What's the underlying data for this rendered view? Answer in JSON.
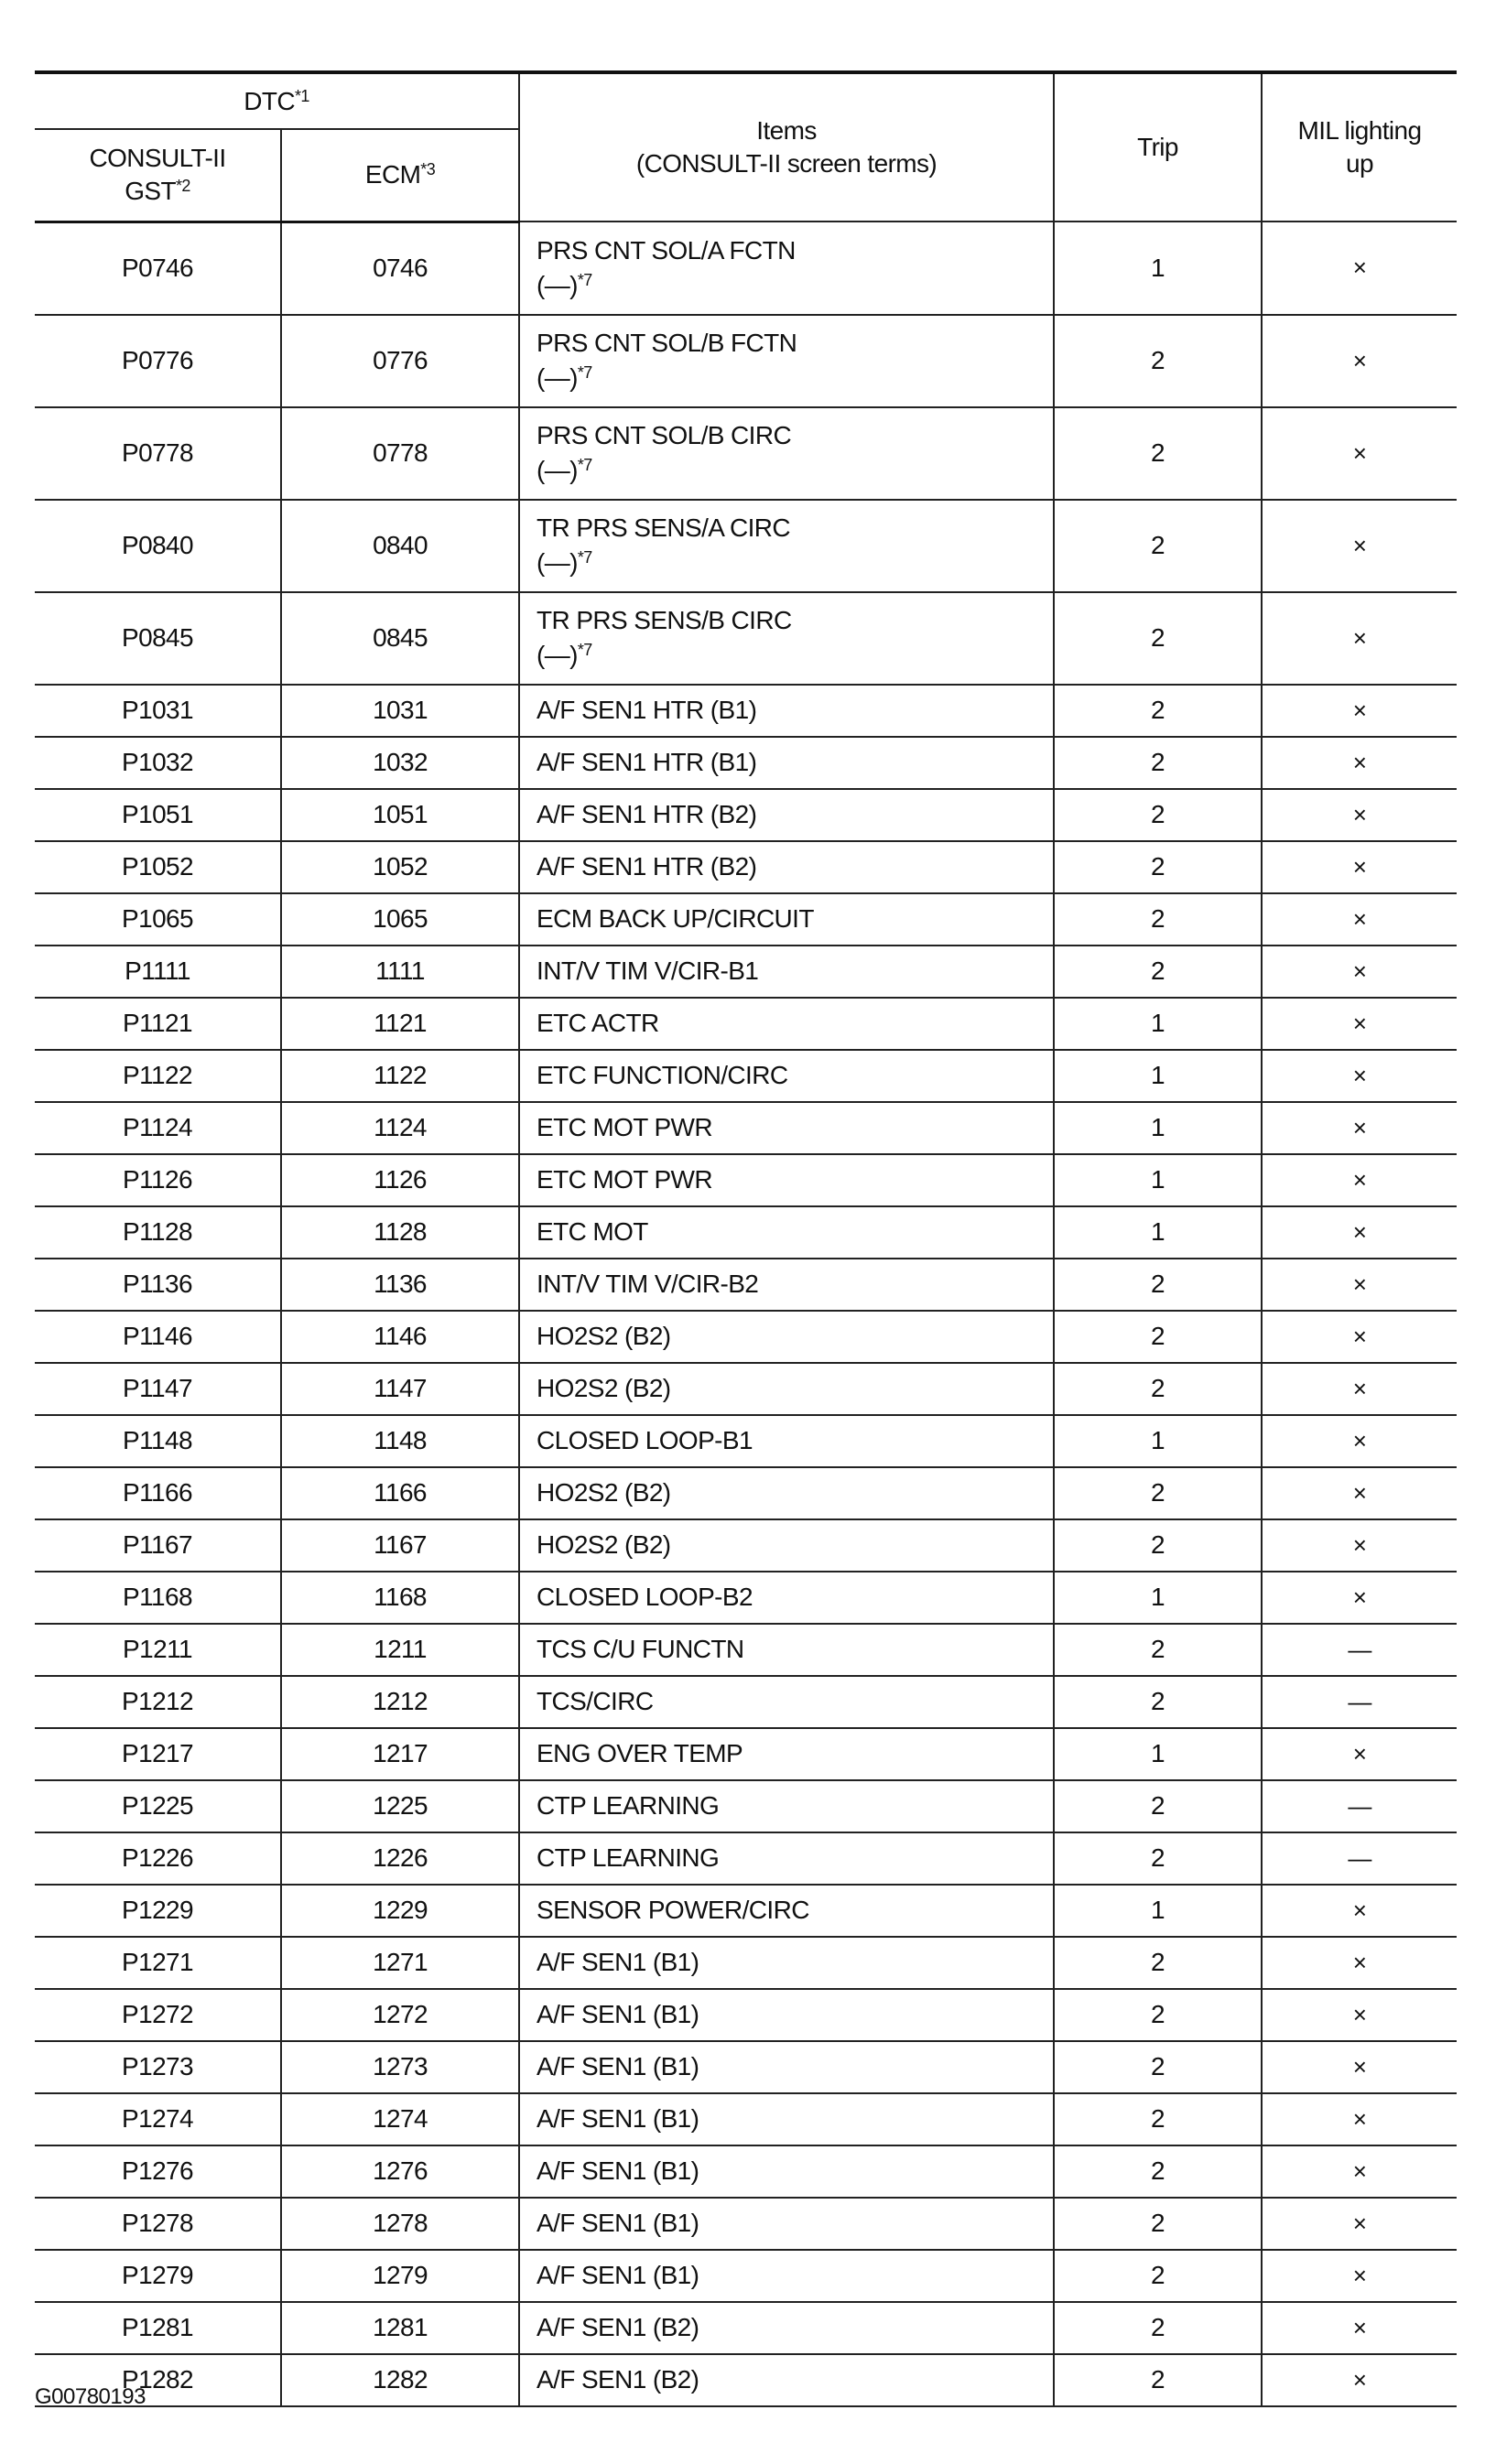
{
  "header": {
    "dtc": "DTC",
    "dtc_note": "*1",
    "consult": "CONSULT-II",
    "gst": "GST",
    "gst_note": "*2",
    "ecm": "ECM",
    "ecm_note": "*3",
    "items_line1": "Items",
    "items_line2": "(CONSULT-II screen terms)",
    "trip": "Trip",
    "mil_line1": "MIL lighting",
    "mil_line2": "up"
  },
  "rows": [
    {
      "consult": "P0746",
      "ecm": "0746",
      "item": "PRS CNT SOL/A FCTN",
      "sub": "(—)",
      "sub_note": "*7",
      "trip": "1",
      "mil": "×"
    },
    {
      "consult": "P0776",
      "ecm": "0776",
      "item": "PRS CNT SOL/B FCTN",
      "sub": "(—)",
      "sub_note": "*7",
      "trip": "2",
      "mil": "×"
    },
    {
      "consult": "P0778",
      "ecm": "0778",
      "item": "PRS CNT SOL/B CIRC",
      "sub": "(—)",
      "sub_note": "*7",
      "trip": "2",
      "mil": "×"
    },
    {
      "consult": "P0840",
      "ecm": "0840",
      "item": "TR PRS SENS/A CIRC",
      "sub": "(—)",
      "sub_note": "*7",
      "trip": "2",
      "mil": "×"
    },
    {
      "consult": "P0845",
      "ecm": "0845",
      "item": "TR PRS SENS/B CIRC",
      "sub": "(—)",
      "sub_note": "*7",
      "trip": "2",
      "mil": "×"
    },
    {
      "consult": "P1031",
      "ecm": "1031",
      "item": "A/F SEN1 HTR (B1)",
      "trip": "2",
      "mil": "×"
    },
    {
      "consult": "P1032",
      "ecm": "1032",
      "item": "A/F SEN1 HTR (B1)",
      "trip": "2",
      "mil": "×"
    },
    {
      "consult": "P1051",
      "ecm": "1051",
      "item": "A/F SEN1 HTR (B2)",
      "trip": "2",
      "mil": "×"
    },
    {
      "consult": "P1052",
      "ecm": "1052",
      "item": "A/F SEN1 HTR (B2)",
      "trip": "2",
      "mil": "×"
    },
    {
      "consult": "P1065",
      "ecm": "1065",
      "item": "ECM BACK UP/CIRCUIT",
      "trip": "2",
      "mil": "×"
    },
    {
      "consult": "P1111",
      "ecm": "1111",
      "item": "INT/V TIM V/CIR-B1",
      "trip": "2",
      "mil": "×"
    },
    {
      "consult": "P1121",
      "ecm": "1121",
      "item": "ETC ACTR",
      "trip": "1",
      "mil": "×"
    },
    {
      "consult": "P1122",
      "ecm": "1122",
      "item": "ETC FUNCTION/CIRC",
      "trip": "1",
      "mil": "×"
    },
    {
      "consult": "P1124",
      "ecm": "1124",
      "item": "ETC MOT PWR",
      "trip": "1",
      "mil": "×"
    },
    {
      "consult": "P1126",
      "ecm": "1126",
      "item": "ETC MOT PWR",
      "trip": "1",
      "mil": "×"
    },
    {
      "consult": "P1128",
      "ecm": "1128",
      "item": "ETC MOT",
      "trip": "1",
      "mil": "×"
    },
    {
      "consult": "P1136",
      "ecm": "1136",
      "item": "INT/V TIM V/CIR-B2",
      "trip": "2",
      "mil": "×"
    },
    {
      "consult": "P1146",
      "ecm": "1146",
      "item": "HO2S2 (B2)",
      "trip": "2",
      "mil": "×"
    },
    {
      "consult": "P1147",
      "ecm": "1147",
      "item": "HO2S2 (B2)",
      "trip": "2",
      "mil": "×"
    },
    {
      "consult": "P1148",
      "ecm": "1148",
      "item": "CLOSED LOOP-B1",
      "trip": "1",
      "mil": "×"
    },
    {
      "consult": "P1166",
      "ecm": "1166",
      "item": "HO2S2 (B2)",
      "trip": "2",
      "mil": "×"
    },
    {
      "consult": "P1167",
      "ecm": "1167",
      "item": "HO2S2 (B2)",
      "trip": "2",
      "mil": "×"
    },
    {
      "consult": "P1168",
      "ecm": "1168",
      "item": "CLOSED LOOP-B2",
      "trip": "1",
      "mil": "×"
    },
    {
      "consult": "P1211",
      "ecm": "1211",
      "item": "TCS C/U FUNCTN",
      "trip": "2",
      "mil": "—"
    },
    {
      "consult": "P1212",
      "ecm": "1212",
      "item": "TCS/CIRC",
      "trip": "2",
      "mil": "—"
    },
    {
      "consult": "P1217",
      "ecm": "1217",
      "item": "ENG OVER TEMP",
      "trip": "1",
      "mil": "×"
    },
    {
      "consult": "P1225",
      "ecm": "1225",
      "item": "CTP LEARNING",
      "trip": "2",
      "mil": "—"
    },
    {
      "consult": "P1226",
      "ecm": "1226",
      "item": "CTP LEARNING",
      "trip": "2",
      "mil": "—"
    },
    {
      "consult": "P1229",
      "ecm": "1229",
      "item": "SENSOR POWER/CIRC",
      "trip": "1",
      "mil": "×"
    },
    {
      "consult": "P1271",
      "ecm": "1271",
      "item": "A/F SEN1 (B1)",
      "trip": "2",
      "mil": "×"
    },
    {
      "consult": "P1272",
      "ecm": "1272",
      "item": "A/F SEN1 (B1)",
      "trip": "2",
      "mil": "×"
    },
    {
      "consult": "P1273",
      "ecm": "1273",
      "item": "A/F SEN1 (B1)",
      "trip": "2",
      "mil": "×"
    },
    {
      "consult": "P1274",
      "ecm": "1274",
      "item": "A/F SEN1 (B1)",
      "trip": "2",
      "mil": "×"
    },
    {
      "consult": "P1276",
      "ecm": "1276",
      "item": "A/F SEN1 (B1)",
      "trip": "2",
      "mil": "×"
    },
    {
      "consult": "P1278",
      "ecm": "1278",
      "item": "A/F SEN1 (B1)",
      "trip": "2",
      "mil": "×"
    },
    {
      "consult": "P1279",
      "ecm": "1279",
      "item": "A/F SEN1 (B1)",
      "trip": "2",
      "mil": "×"
    },
    {
      "consult": "P1281",
      "ecm": "1281",
      "item": "A/F SEN1 (B2)",
      "trip": "2",
      "mil": "×"
    },
    {
      "consult": "P1282",
      "ecm": "1282",
      "item": "A/F SEN1 (B2)",
      "trip": "2",
      "mil": "×"
    }
  ],
  "footer": {
    "figure_id": "G00780193"
  }
}
